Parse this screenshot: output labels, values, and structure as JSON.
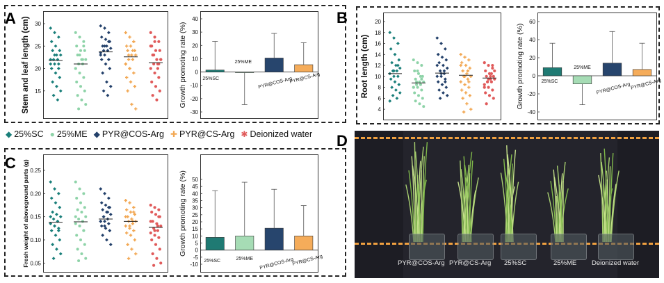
{
  "panels": {
    "a": "A",
    "b": "B",
    "c": "C",
    "d": "D"
  },
  "legend": [
    {
      "label": "25%SC",
      "color": "#1a7f7a"
    },
    {
      "label": "25%ME",
      "color": "#8ed3a8"
    },
    {
      "label": "PYR@COS-Arg",
      "color": "#23406a"
    },
    {
      "label": "PYR@CS-Arg",
      "color": "#f2a854"
    },
    {
      "label": "Deionized water",
      "color": "#e05a5a"
    }
  ],
  "chart_data": [
    {
      "id": "A-scatter",
      "type": "scatter",
      "ylabel": "Stem and leaf length (cm)",
      "ylim": [
        10,
        30
      ],
      "yticks": [
        15,
        20,
        25,
        30
      ],
      "series": [
        {
          "name": "25%SC",
          "mean": 21.8,
          "values": [
            29,
            28,
            27,
            26,
            25,
            24,
            24,
            23,
            23,
            22,
            22,
            21,
            21,
            20,
            20,
            19,
            18,
            17,
            16,
            15,
            14,
            13,
            22,
            23,
            21
          ]
        },
        {
          "name": "25%ME",
          "mean": 21.0,
          "values": [
            28,
            27,
            26,
            25,
            24,
            24,
            23,
            22,
            22,
            21,
            21,
            20,
            19,
            18,
            17,
            16,
            15,
            14,
            13,
            12,
            11,
            22,
            20,
            23,
            25
          ]
        },
        {
          "name": "PYR@COS-Arg",
          "mean": 23.7,
          "values": [
            29.5,
            29,
            28,
            27,
            26.5,
            26,
            25,
            25,
            24.5,
            24,
            24,
            23.5,
            23,
            22,
            22,
            21,
            20,
            19,
            17,
            16,
            15,
            14,
            23,
            25,
            26
          ]
        },
        {
          "name": "PYR@CS-Arg",
          "mean": 22.6,
          "values": [
            28,
            27,
            26,
            25,
            25,
            24,
            24,
            23,
            23,
            22,
            22,
            21,
            20,
            19,
            18,
            17,
            16,
            15,
            12,
            11,
            23,
            24,
            21,
            20,
            26
          ]
        },
        {
          "name": "Deionized water",
          "mean": 21.3,
          "values": [
            28,
            27,
            26,
            25,
            24,
            24,
            23,
            22,
            22,
            21,
            21,
            20,
            19,
            18,
            17,
            16,
            15,
            14,
            13,
            22,
            23,
            20,
            25,
            26,
            21
          ]
        }
      ]
    },
    {
      "id": "A-bar",
      "type": "bar",
      "ylabel": "Growth promoting rate (%)",
      "ylim": [
        -30,
        40
      ],
      "yticks": [
        -30,
        -20,
        -10,
        0,
        10,
        20,
        30,
        40
      ],
      "categories": [
        "25%SC",
        "25%ME",
        "PYR@COS-Arg",
        "PYR@CS-Arg"
      ],
      "values": [
        1.5,
        -0.5,
        10.5,
        5.5
      ],
      "errors": [
        21.5,
        24,
        18.5,
        16.5
      ],
      "labels": [
        "25%SC",
        "25%ME",
        "PYR@COS-Arg",
        "PYR@CS-Arg"
      ]
    },
    {
      "id": "B-scatter",
      "type": "scatter",
      "ylabel": "Root length (cm)",
      "ylim": [
        3,
        20
      ],
      "yticks": [
        4,
        6,
        8,
        10,
        12,
        14,
        16,
        18,
        20
      ],
      "series": [
        {
          "name": "25%SC",
          "mean": 10.5,
          "values": [
            18,
            17,
            16,
            15,
            14,
            13,
            12.5,
            12,
            11.5,
            11,
            11,
            10.5,
            10,
            10,
            9.5,
            9,
            8.5,
            8,
            7.5,
            7,
            6.5,
            6,
            5.5,
            11,
            12
          ]
        },
        {
          "name": "25%ME",
          "mean": 8.8,
          "values": [
            13,
            12.5,
            12,
            11,
            10.5,
            10,
            9.5,
            9,
            9,
            8.5,
            8.5,
            8,
            8,
            7.5,
            7,
            6.5,
            6,
            5.5,
            5,
            4.5,
            9,
            10,
            8,
            11,
            9.5
          ]
        },
        {
          "name": "PYR@COS-Arg",
          "mean": 10.6,
          "values": [
            17,
            16,
            15,
            14,
            13.5,
            13,
            12.5,
            12,
            11.5,
            11,
            10.5,
            10,
            10,
            9.5,
            9,
            8.5,
            8,
            7.5,
            7,
            6.5,
            6,
            11,
            12,
            10.5,
            9
          ]
        },
        {
          "name": "PYR@CS-Arg",
          "mean": 10.2,
          "values": [
            14,
            13.5,
            13,
            12.5,
            12,
            11.5,
            11,
            10.5,
            10,
            10,
            9.5,
            9,
            8.5,
            8,
            7.5,
            7,
            6.5,
            6,
            5,
            4,
            3.5,
            11,
            12,
            10,
            9
          ]
        },
        {
          "name": "Deionized water",
          "mean": 9.7,
          "values": [
            12.5,
            12,
            11.5,
            11,
            10.5,
            10,
            10,
            9.5,
            9.5,
            9,
            9,
            8.5,
            8,
            7.5,
            7,
            6.5,
            6,
            5,
            10,
            11,
            9,
            10.5,
            8,
            9.5,
            12
          ]
        }
      ]
    },
    {
      "id": "B-bar",
      "type": "bar",
      "ylabel": "Growth promoting rate (%)",
      "ylim": [
        -40,
        60
      ],
      "yticks": [
        -40,
        -20,
        0,
        20,
        40,
        60
      ],
      "categories": [
        "25%SC",
        "25%ME",
        "PYR@COS-Arg",
        "PYR@CS-Arg"
      ],
      "values": [
        9,
        -9,
        14,
        7
      ],
      "errors": [
        27,
        23,
        35,
        29
      ],
      "labels": [
        "25%SC",
        "25%ME",
        "PYR@COS-Arg",
        "PYR@CS-Arg"
      ]
    },
    {
      "id": "C-scatter",
      "type": "scatter",
      "ylabel": "Fresh weight of aboveground parts (g)",
      "ylim": [
        0.04,
        0.25
      ],
      "yticks": [
        0.05,
        0.1,
        0.15,
        0.2,
        0.25
      ],
      "series": [
        {
          "name": "25%SC",
          "mean": 0.138,
          "values": [
            0.225,
            0.21,
            0.2,
            0.19,
            0.18,
            0.17,
            0.16,
            0.155,
            0.15,
            0.145,
            0.14,
            0.135,
            0.13,
            0.125,
            0.12,
            0.11,
            0.1,
            0.09,
            0.08,
            0.07,
            0.06,
            0.14,
            0.15,
            0.13,
            0.12
          ]
        },
        {
          "name": "25%ME",
          "mean": 0.139,
          "values": [
            0.225,
            0.21,
            0.2,
            0.19,
            0.18,
            0.17,
            0.165,
            0.16,
            0.15,
            0.145,
            0.14,
            0.135,
            0.13,
            0.12,
            0.11,
            0.1,
            0.09,
            0.08,
            0.07,
            0.06,
            0.055,
            0.14,
            0.15,
            0.13,
            0.12
          ]
        },
        {
          "name": "PYR@COS-Arg",
          "mean": 0.145,
          "values": [
            0.21,
            0.2,
            0.19,
            0.18,
            0.175,
            0.17,
            0.165,
            0.16,
            0.155,
            0.15,
            0.145,
            0.14,
            0.14,
            0.135,
            0.13,
            0.125,
            0.12,
            0.11,
            0.1,
            0.09,
            0.15,
            0.16,
            0.14,
            0.13,
            0.17
          ]
        },
        {
          "name": "PYR@CS-Arg",
          "mean": 0.14,
          "values": [
            0.185,
            0.18,
            0.17,
            0.165,
            0.16,
            0.155,
            0.15,
            0.145,
            0.14,
            0.14,
            0.135,
            0.13,
            0.125,
            0.12,
            0.115,
            0.11,
            0.1,
            0.09,
            0.08,
            0.07,
            0.06,
            0.14,
            0.15,
            0.13,
            0.16
          ]
        },
        {
          "name": "Deionized water",
          "mean": 0.127,
          "values": [
            0.175,
            0.17,
            0.165,
            0.16,
            0.155,
            0.15,
            0.14,
            0.135,
            0.13,
            0.125,
            0.12,
            0.115,
            0.11,
            0.105,
            0.1,
            0.09,
            0.08,
            0.07,
            0.06,
            0.05,
            0.045,
            0.13,
            0.14,
            0.12,
            0.15
          ]
        }
      ]
    },
    {
      "id": "C-bar",
      "type": "bar",
      "ylabel": "Growth promoting rate (%)",
      "ylim": [
        -10,
        50
      ],
      "yticks": [
        -10,
        -5,
        0,
        5,
        10,
        15,
        20,
        25,
        30,
        35,
        40,
        45,
        50
      ],
      "categories": [
        "25%SC",
        "25%ME",
        "PYR@COS-Arg",
        "PYR@CS-Arg"
      ],
      "values": [
        9,
        10,
        15.5,
        10
      ],
      "errors": [
        33,
        38,
        27.5,
        21.5
      ],
      "labels": [
        "25%SC",
        "25%ME",
        "PYR@COS-Arg",
        "PYR@CS-Arg"
      ]
    }
  ],
  "photo": {
    "labels": [
      "PYR@COS-Arg",
      "PYR@CS-Arg",
      "25%SC",
      "25%ME",
      "Deionized water"
    ]
  }
}
